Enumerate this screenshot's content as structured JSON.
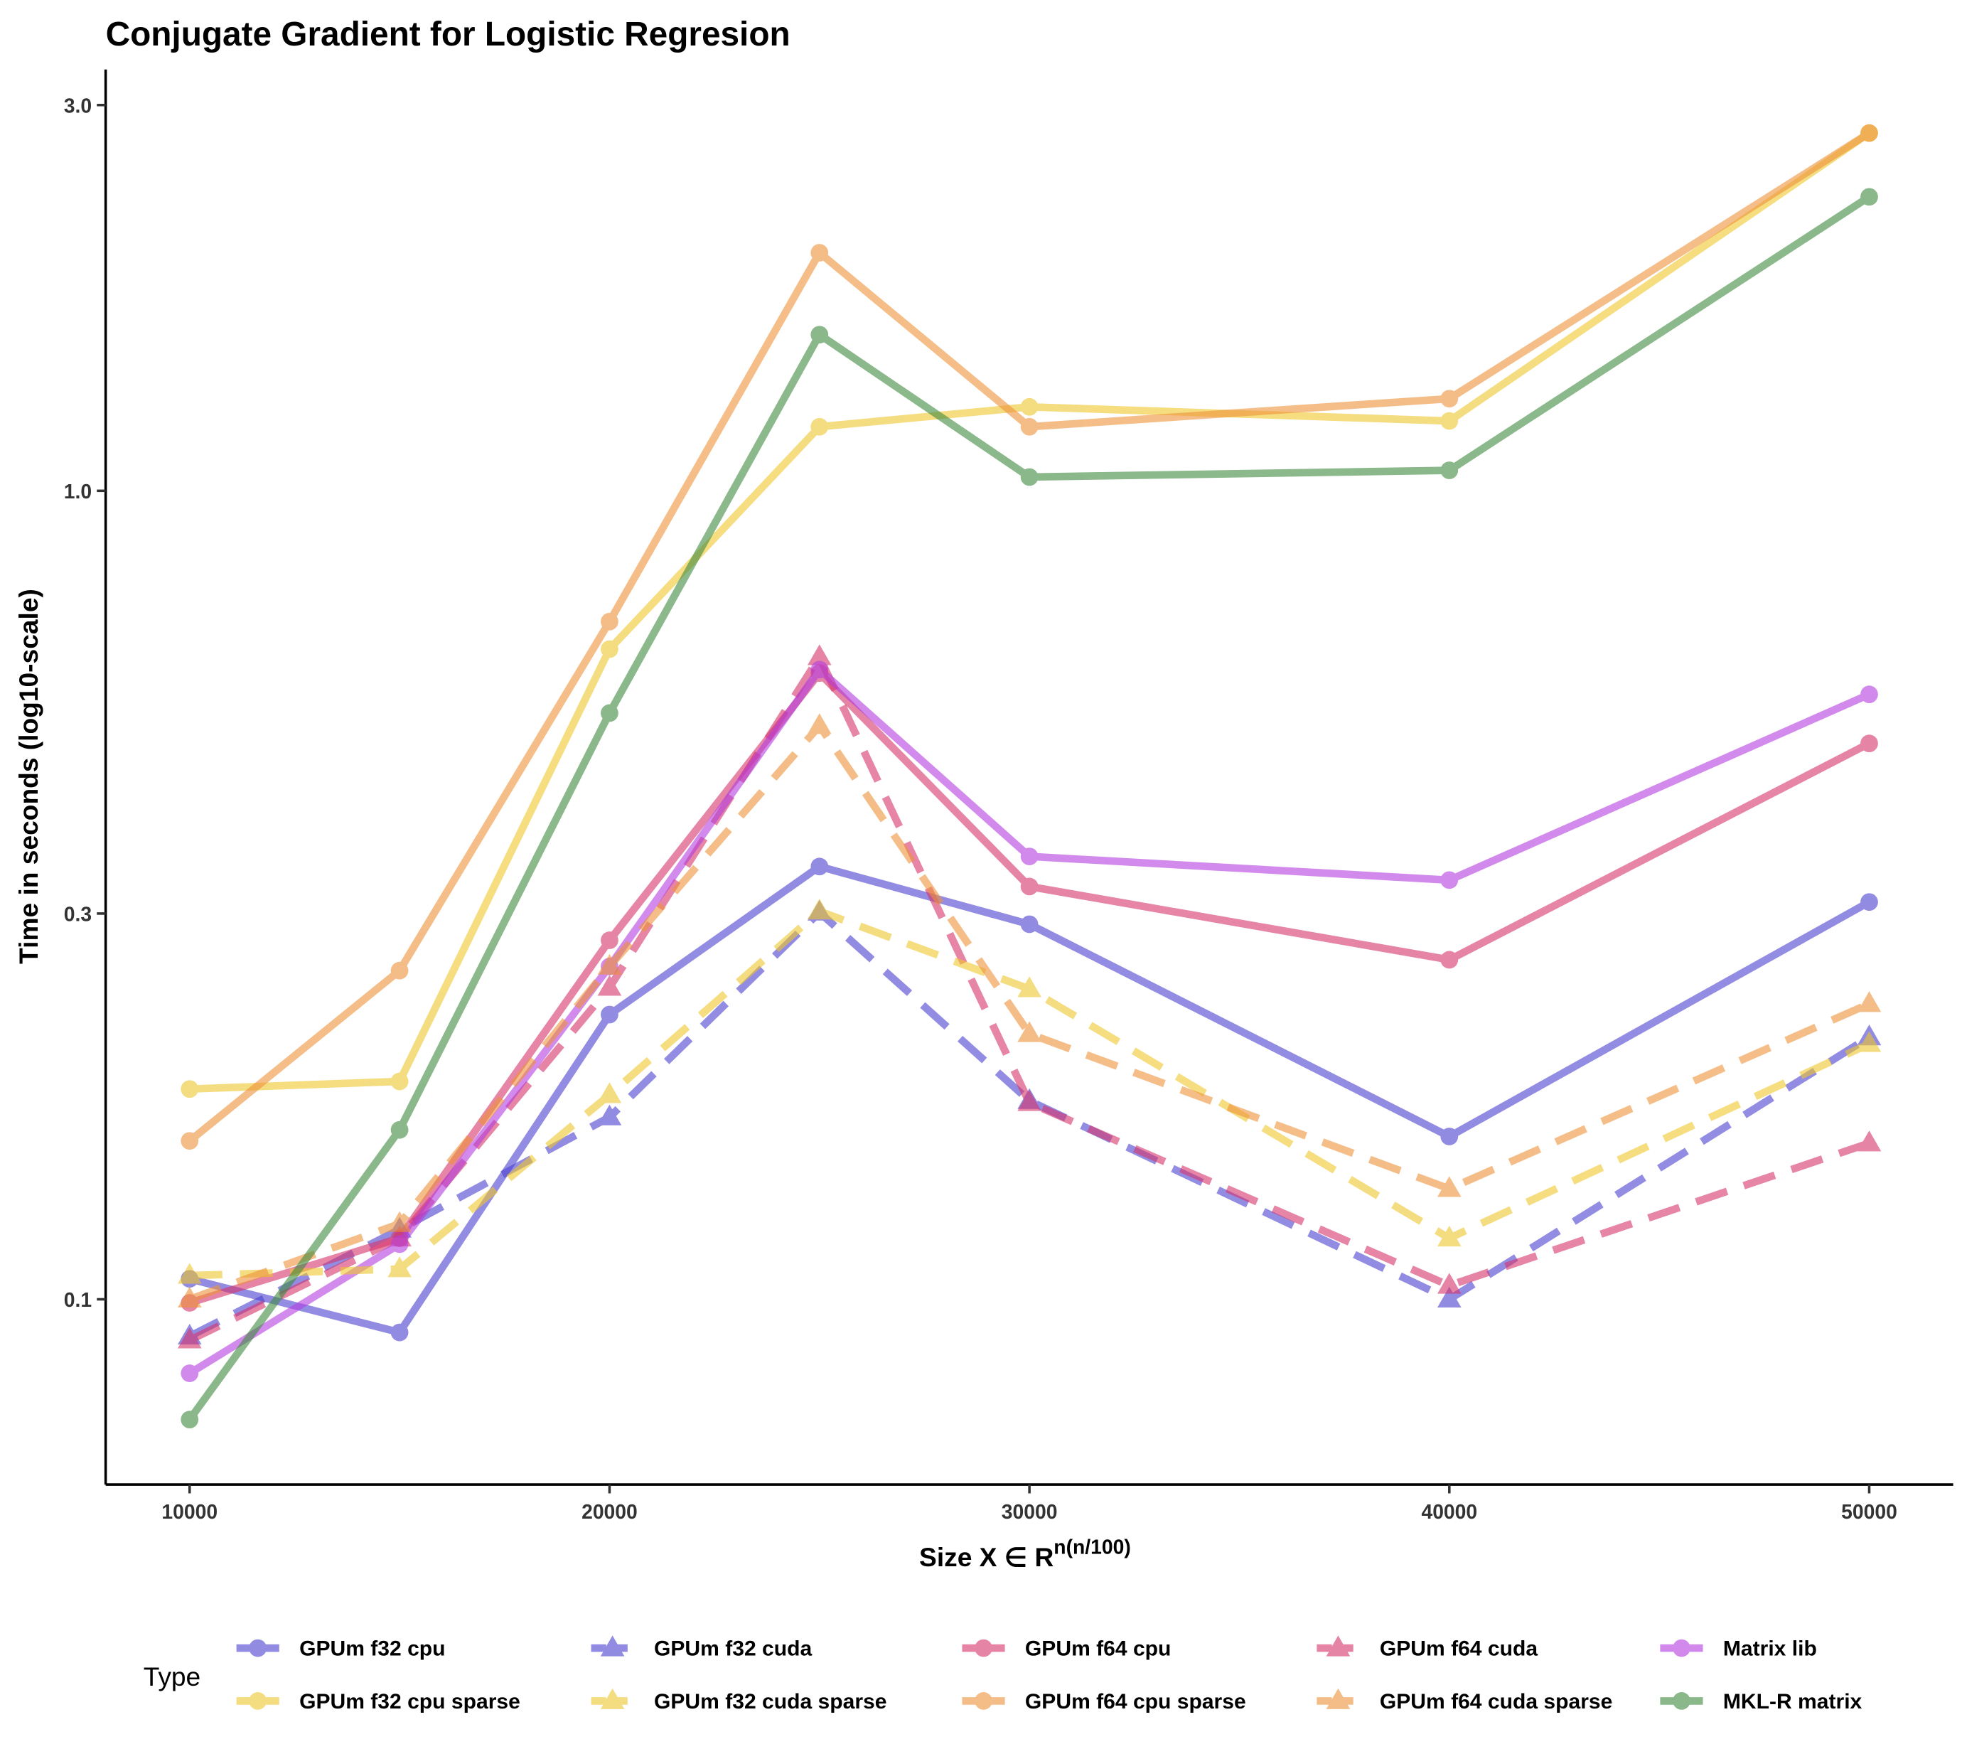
{
  "chart_data": {
    "type": "line",
    "title": "Conjugate Gradient for Logistic Regresion",
    "xlabel": "Size  X ∈ R",
    "xlabel_superscript": "n(n/100)",
    "ylabel": "Time in seconds (log10-scale)",
    "y_scale": "log10",
    "xlim": [
      8000,
      52000
    ],
    "ylim": [
      0.059,
      3.32
    ],
    "x_ticks": [
      10000,
      20000,
      30000,
      40000,
      50000
    ],
    "x_tick_labels": [
      "10000",
      "20000",
      "30000",
      "40000",
      "50000"
    ],
    "y_ticks": [
      0.1,
      0.3,
      1.0,
      3.0
    ],
    "y_tick_labels": [
      "0.1",
      "0.3",
      "1.0",
      "3.0"
    ],
    "grid": false,
    "legend_title": "Type",
    "legend_position": "bottom",
    "x": [
      10000,
      15000,
      20000,
      25000,
      30000,
      40000,
      50000
    ],
    "series": [
      {
        "name": "GPUm f32 cpu",
        "color": "#4b3fd0",
        "dash": "solid",
        "marker": "circle",
        "values": [
          0.106,
          0.091,
          0.225,
          0.343,
          0.291,
          0.159,
          0.31
        ]
      },
      {
        "name": "GPUm f32 cuda",
        "color": "#4b3fd0",
        "dash": "dashed",
        "marker": "triangle",
        "values": [
          0.09,
          0.122,
          0.168,
          0.301,
          0.176,
          0.1,
          0.211
        ]
      },
      {
        "name": "GPUm f64 cpu",
        "color": "#d6336a",
        "dash": "solid",
        "marker": "circle",
        "values": [
          0.099,
          0.119,
          0.278,
          0.595,
          0.324,
          0.263,
          0.487
        ]
      },
      {
        "name": "GPUm f64 cuda",
        "color": "#d6336a",
        "dash": "dashed",
        "marker": "triangle",
        "values": [
          0.089,
          0.119,
          0.243,
          0.623,
          0.175,
          0.104,
          0.156
        ]
      },
      {
        "name": "Matrix lib",
        "color": "#b43ee0",
        "dash": "solid",
        "marker": "circle",
        "values": [
          0.081,
          0.117,
          0.258,
          0.601,
          0.353,
          0.33,
          0.56
        ]
      },
      {
        "name": "GPUm f32 cpu sparse",
        "color": "#eec62c",
        "dash": "solid",
        "marker": "circle",
        "values": [
          0.182,
          0.186,
          0.637,
          1.2,
          1.27,
          1.22,
          2.77
        ]
      },
      {
        "name": "GPUm f32 cuda sparse",
        "color": "#eec62c",
        "dash": "dashed",
        "marker": "triangle",
        "values": [
          0.107,
          0.109,
          0.179,
          0.302,
          0.242,
          0.119,
          0.207
        ]
      },
      {
        "name": "GPUm f64 cpu sparse",
        "color": "#ee9238",
        "dash": "solid",
        "marker": "circle",
        "values": [
          0.157,
          0.255,
          0.689,
          1.97,
          1.2,
          1.3,
          2.77
        ]
      },
      {
        "name": "GPUm f64 cuda sparse",
        "color": "#ee9238",
        "dash": "dashed",
        "marker": "triangle",
        "values": [
          0.1,
          0.124,
          0.258,
          0.512,
          0.213,
          0.137,
          0.232
        ]
      },
      {
        "name": "MKL-R matrix",
        "color": "#3d8a3d",
        "dash": "solid",
        "marker": "circle",
        "values": [
          0.071,
          0.162,
          0.531,
          1.56,
          1.04,
          1.06,
          2.31
        ]
      }
    ]
  }
}
